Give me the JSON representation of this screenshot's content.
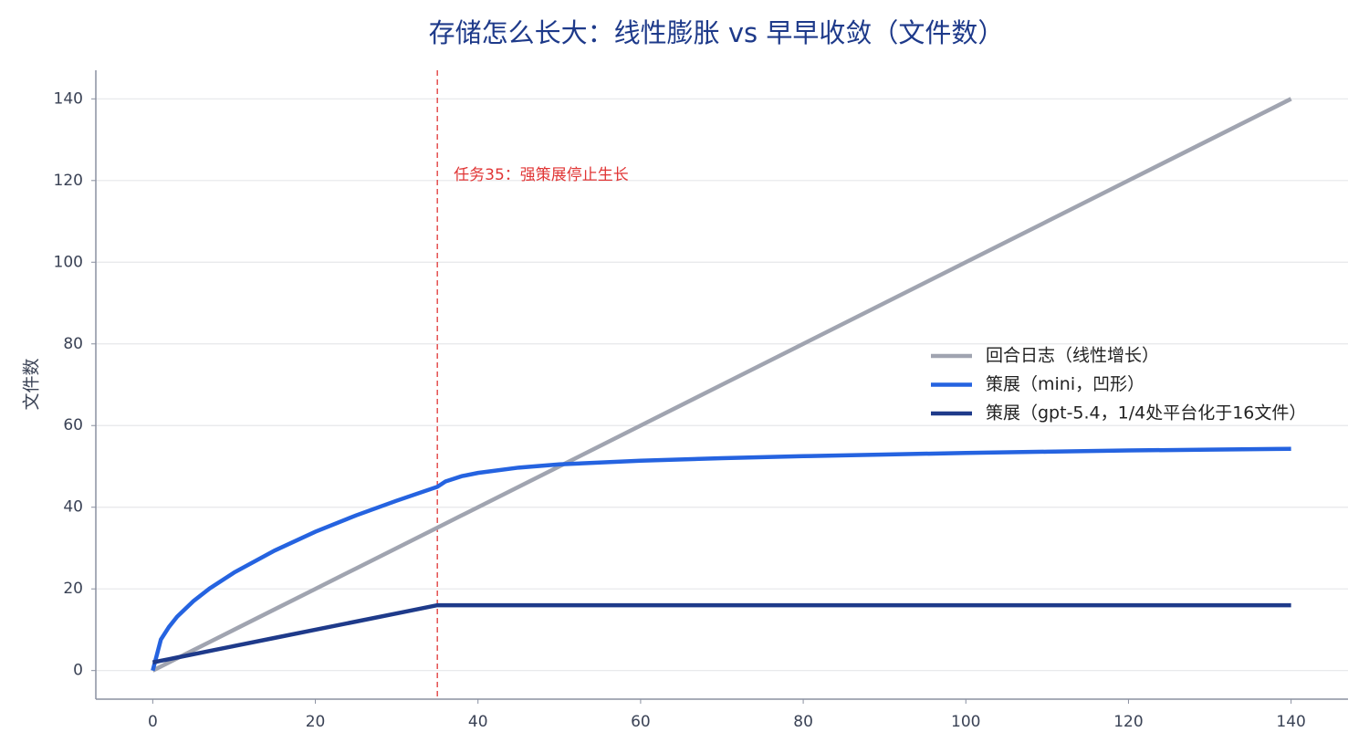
{
  "chart_data": {
    "type": "line",
    "title": "存储怎么长大：线性膨胀 vs 早早收敛（文件数）",
    "y_label": "文件数",
    "x": [
      0,
      1,
      2,
      3,
      5,
      7,
      10,
      15,
      20,
      25,
      30,
      35,
      36,
      38,
      40,
      45,
      50,
      60,
      70,
      80,
      90,
      100,
      110,
      120,
      130,
      140
    ],
    "series": [
      {
        "name": "回合日志（线性增长）",
        "color": "#a0a4b0",
        "values": [
          0,
          1,
          2,
          3,
          5,
          7,
          10,
          15,
          20,
          25,
          30,
          35,
          36,
          38,
          40,
          45,
          50,
          60,
          70,
          80,
          90,
          100,
          110,
          120,
          130,
          140
        ]
      },
      {
        "name": "策展（mini，凹形）",
        "color": "#2563e0",
        "values": [
          0,
          7.6,
          10.7,
          13.2,
          17.0,
          20.1,
          24.0,
          29.4,
          34.0,
          38.0,
          41.6,
          45.0,
          46.3,
          47.6,
          48.4,
          49.7,
          50.5,
          51.4,
          52.0,
          52.5,
          52.9,
          53.3,
          53.6,
          53.9,
          54.1,
          54.3
        ]
      },
      {
        "name": "策展（gpt-5.4，1/4处平台化于16文件）",
        "color": "#1e3a8a",
        "values": [
          2,
          2.4,
          2.8,
          3.2,
          4,
          4.8,
          6,
          8,
          10,
          12,
          14,
          16,
          16,
          16,
          16,
          16,
          16,
          16,
          16,
          16,
          16,
          16,
          16,
          16,
          16,
          16
        ]
      }
    ],
    "annotation": {
      "x": 35,
      "text": "任务35：强策展停止生长",
      "color": "#e03535"
    },
    "xlim": [
      -7,
      147
    ],
    "ylim": [
      -7,
      147
    ],
    "xticks": [
      0,
      20,
      40,
      60,
      80,
      100,
      120,
      140
    ],
    "yticks": [
      0,
      20,
      40,
      60,
      80,
      100,
      120,
      140
    ],
    "grid": true,
    "legend": "center right"
  }
}
